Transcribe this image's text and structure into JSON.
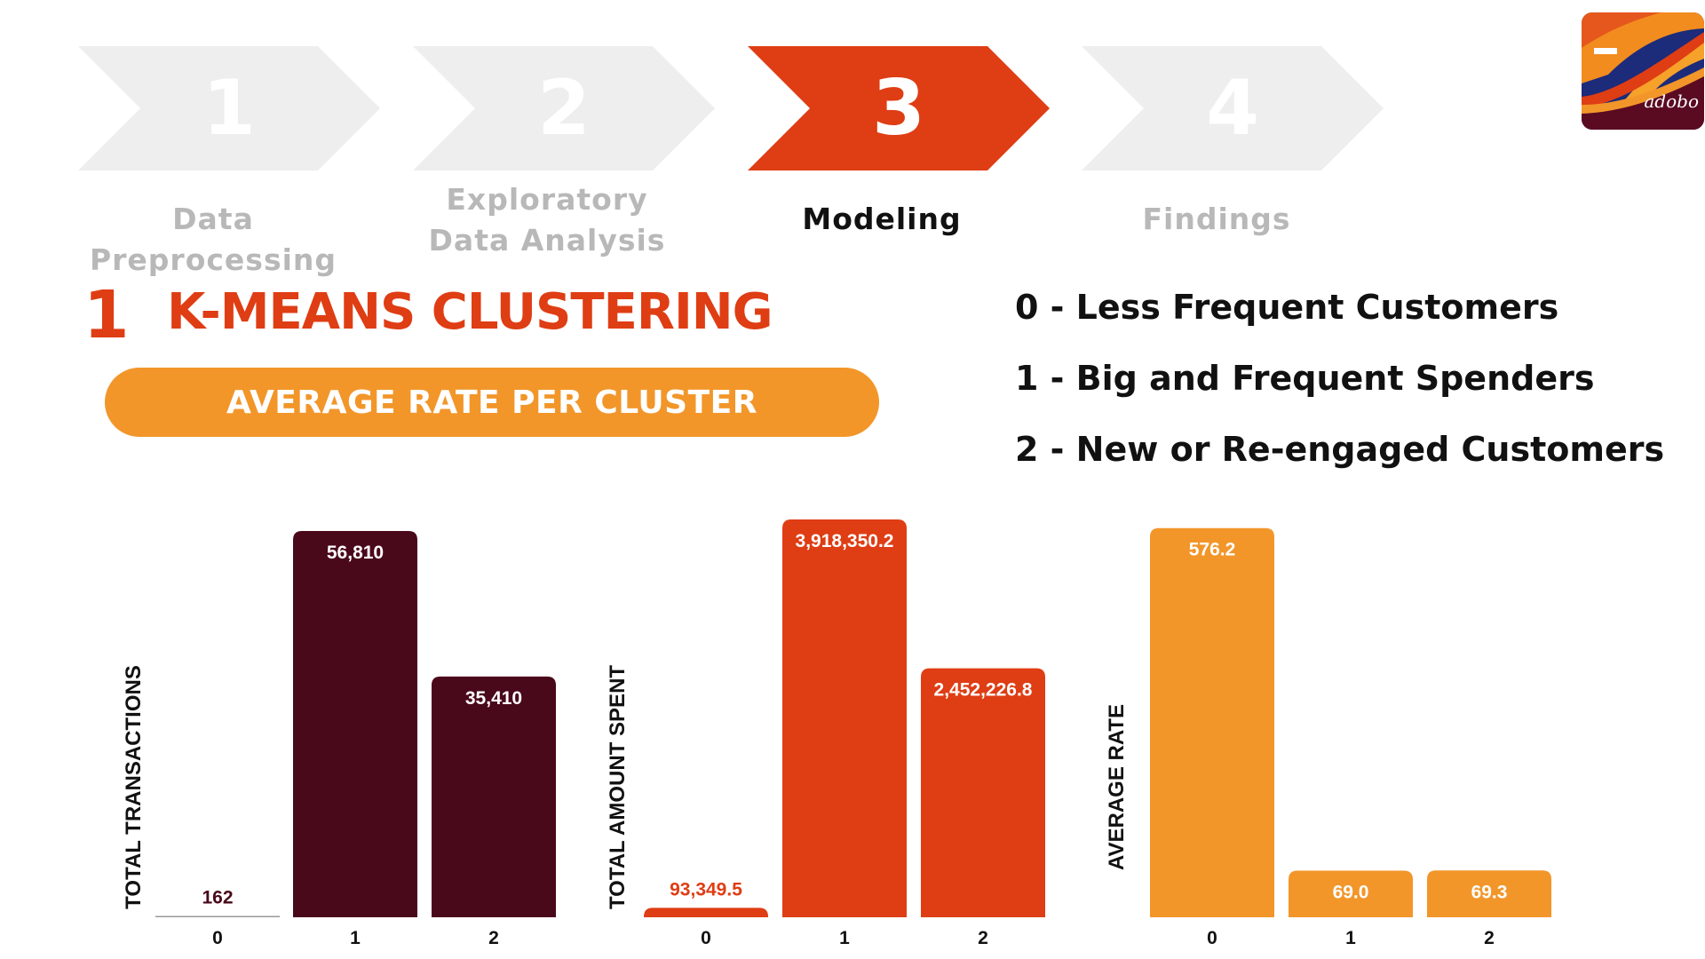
{
  "steps": [
    {
      "number": "1",
      "label_lines": [
        "Data Preprocessing"
      ],
      "active": false
    },
    {
      "number": "2",
      "label_lines": [
        "Exploratory",
        "Data Analysis"
      ],
      "active": false
    },
    {
      "number": "3",
      "label_lines": [
        "Modeling"
      ],
      "active": true
    },
    {
      "number": "4",
      "label_lines": [
        "Findings"
      ],
      "active": false
    }
  ],
  "logo": {
    "text": "adobo"
  },
  "section": {
    "number": "1",
    "title": "K-MEANS CLUSTERING",
    "subtitle": "AVERAGE RATE PER CLUSTER"
  },
  "legend": [
    "0 - Less Frequent Customers",
    "1 - Big and Frequent Spenders",
    "2 - New or Re-engaged Customers"
  ],
  "colors": {
    "step_inactive": "#eeeeee",
    "step_active": "#df3d14",
    "maroon": "#4a081b",
    "red_orange": "#df3d14",
    "orange": "#f2962a"
  },
  "chart_data": [
    {
      "type": "bar",
      "ylabel": "TOTAL TRANSACTIONS",
      "categories": [
        "0",
        "1",
        "2"
      ],
      "values": [
        162,
        56810,
        35410
      ],
      "labels": [
        "162",
        "56,810",
        "35,410"
      ],
      "ylim": [
        0,
        58500
      ],
      "color": "#4a081b",
      "grid": false
    },
    {
      "type": "bar",
      "ylabel": "TOTAL AMOUNT SPENT",
      "categories": [
        "0",
        "1",
        "2"
      ],
      "values": [
        93349.5,
        3918350.2,
        2452226.8
      ],
      "labels": [
        "93,349.5",
        "3,918,350.2",
        "2,452,226.8"
      ],
      "ylim": [
        0,
        3918350.2
      ],
      "color": "#df3d14",
      "grid": false
    },
    {
      "type": "bar",
      "ylabel": "AVERAGE RATE",
      "categories": [
        "0",
        "1",
        "2"
      ],
      "values": [
        576.2,
        69.0,
        69.3
      ],
      "labels": [
        "576.2",
        "69.0",
        "69.3"
      ],
      "ylim": [
        0,
        589
      ],
      "color": "#f2962a",
      "grid": false
    }
  ]
}
